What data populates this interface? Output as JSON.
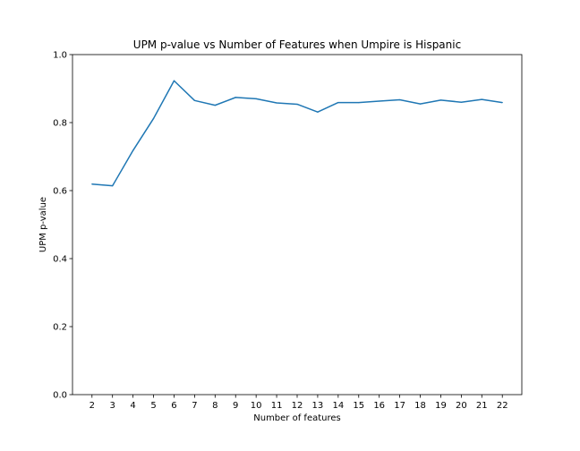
{
  "chart_data": {
    "type": "line",
    "title": "UPM p-value vs Number of Features when Umpire is Hispanic",
    "xlabel": "Number of features",
    "ylabel": "UPM p-value",
    "x": [
      2,
      3,
      4,
      5,
      6,
      7,
      8,
      9,
      10,
      11,
      12,
      13,
      14,
      15,
      16,
      17,
      18,
      19,
      20,
      21,
      22
    ],
    "series": [
      {
        "values": [
          0.619,
          0.614,
          0.718,
          0.812,
          0.923,
          0.865,
          0.851,
          0.874,
          0.87,
          0.858,
          0.854,
          0.831,
          0.859,
          0.859,
          0.863,
          0.867,
          0.855,
          0.866,
          0.86,
          0.868,
          0.859
        ],
        "color": "#1f77b4"
      }
    ],
    "xlim": [
      1.05,
      22.95
    ],
    "ylim": [
      0.0,
      1.0
    ],
    "xticks": [
      "2",
      "3",
      "4",
      "5",
      "6",
      "7",
      "8",
      "9",
      "10",
      "11",
      "12",
      "13",
      "14",
      "15",
      "16",
      "17",
      "18",
      "19",
      "20",
      "21",
      "22"
    ],
    "yticks": [
      "0.0",
      "0.2",
      "0.4",
      "0.6",
      "0.8",
      "1.0"
    ],
    "grid": false,
    "legend": "none"
  }
}
